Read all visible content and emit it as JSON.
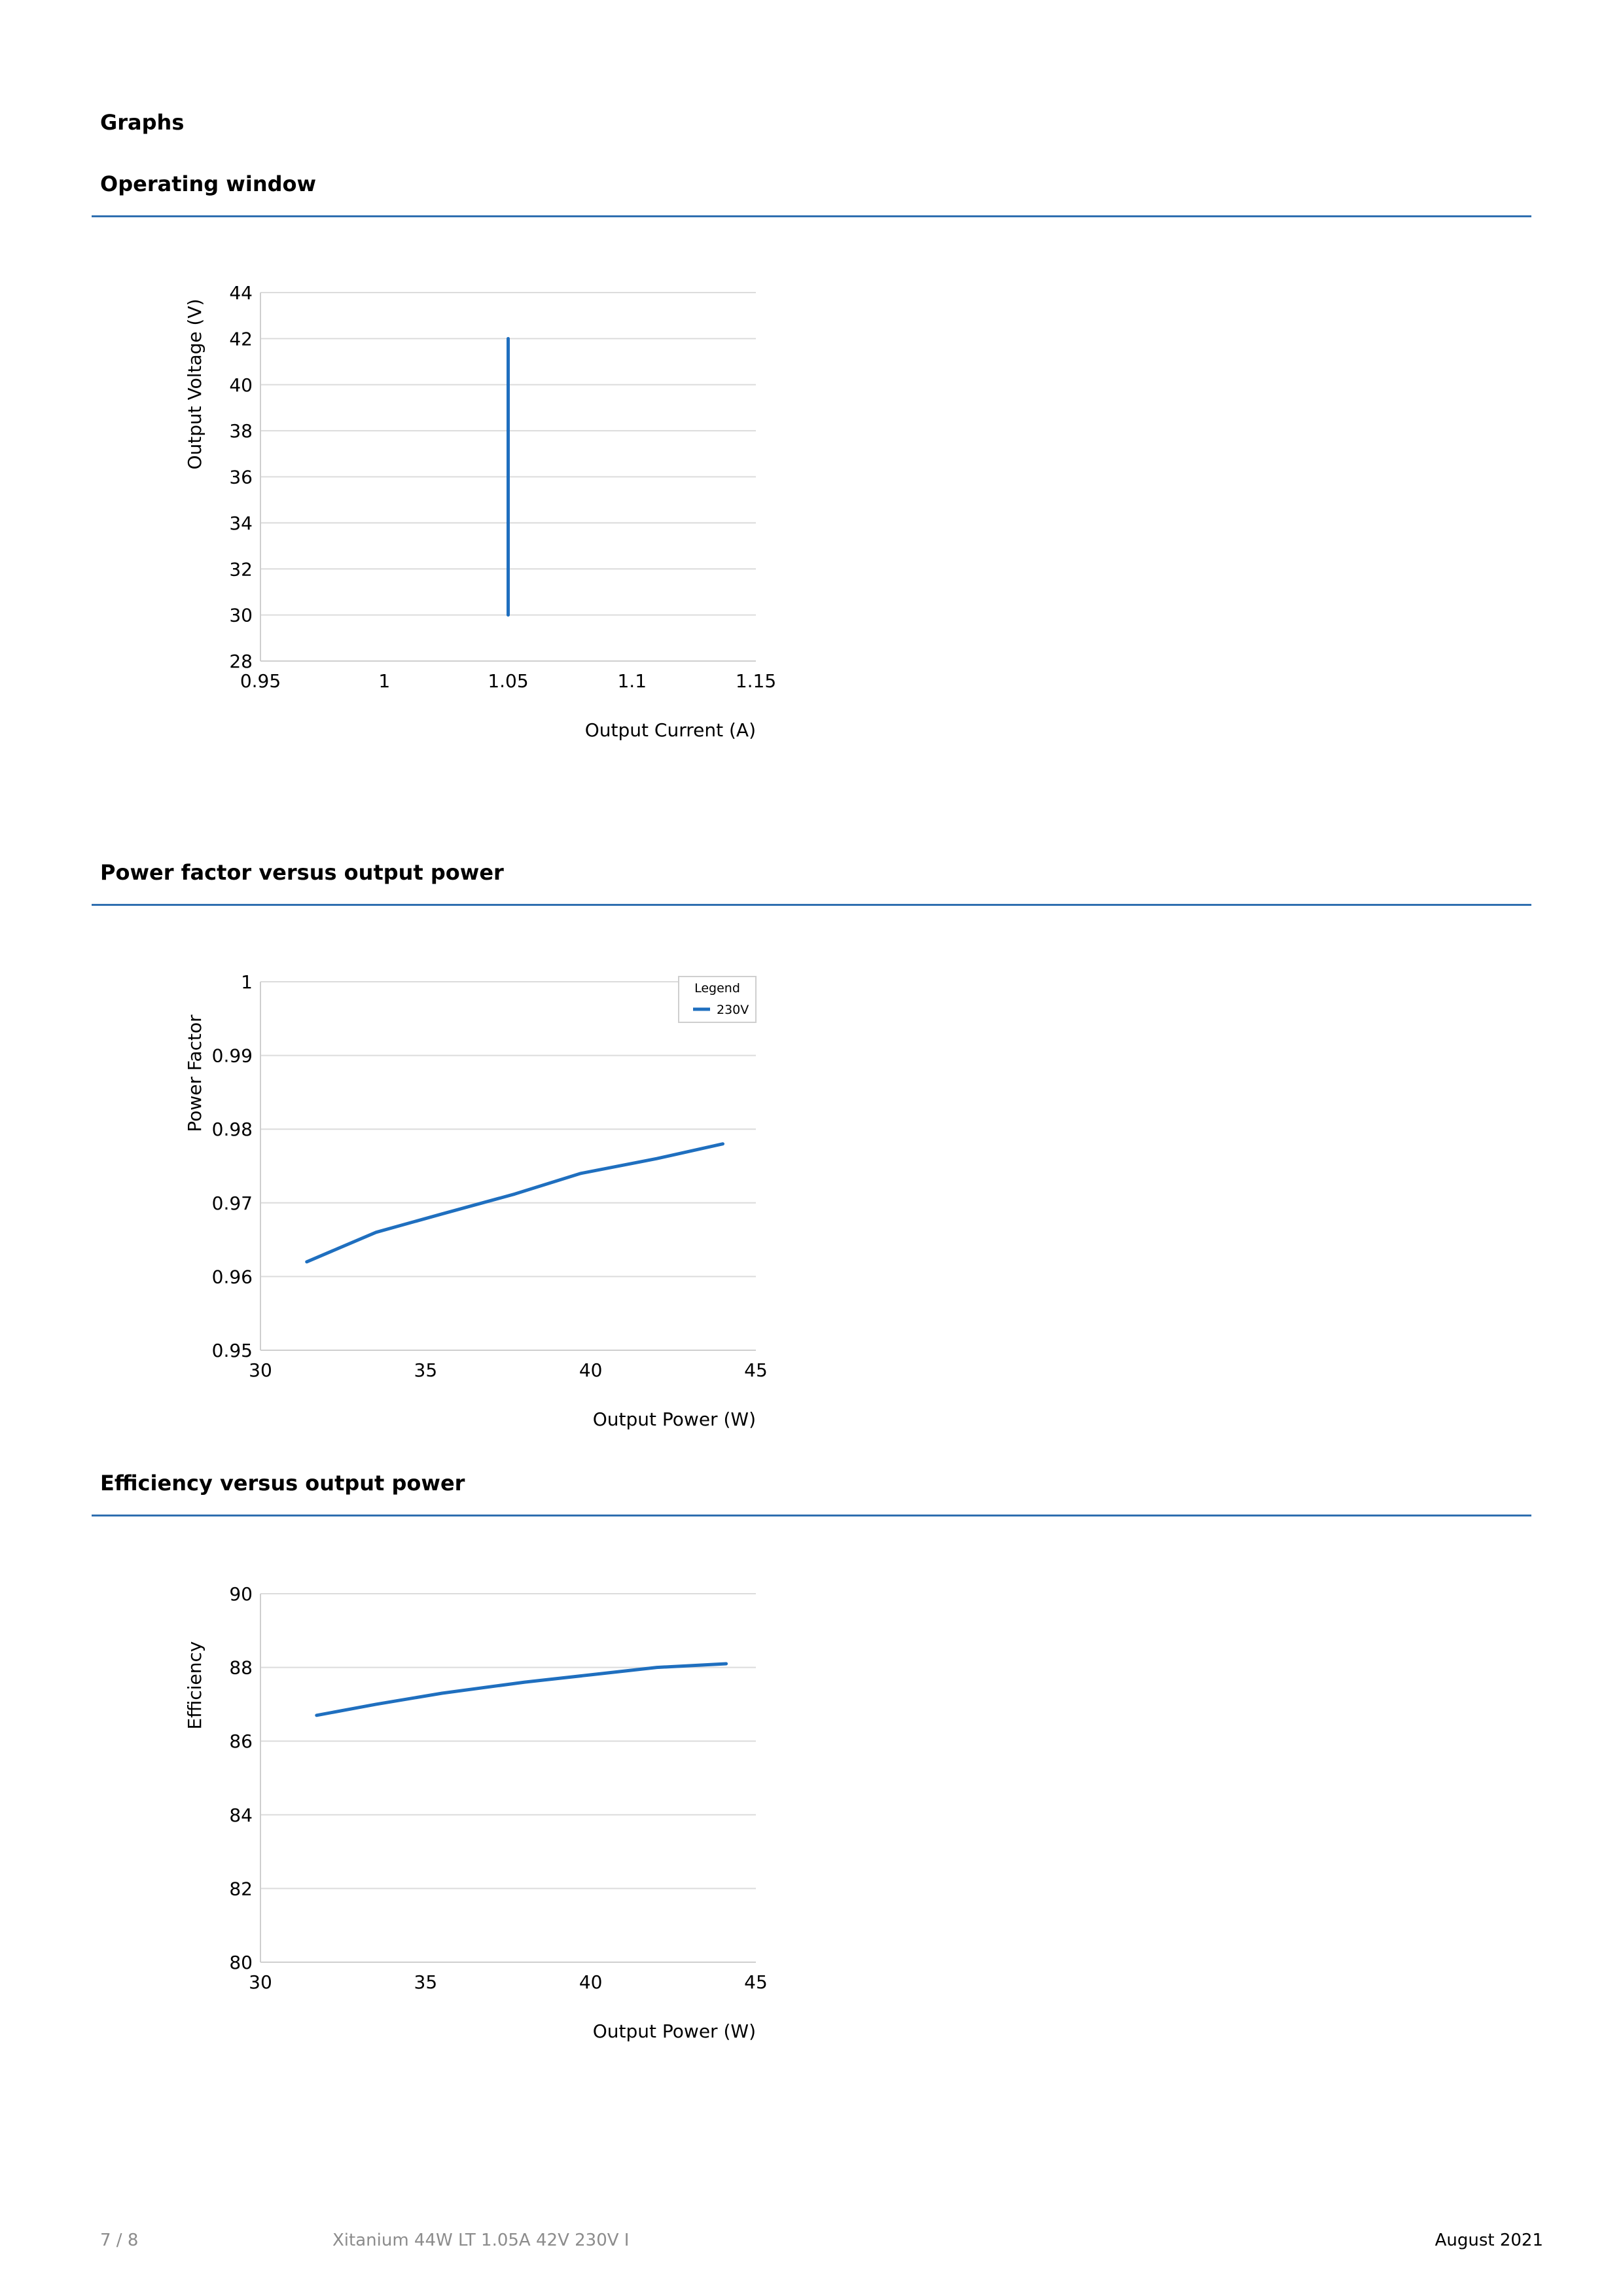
{
  "page": {
    "section_title": "Graphs",
    "footer": {
      "page": "7 / 8",
      "product": "Xitanium 44W LT 1.05A 42V 230V I",
      "date": "August 2021"
    }
  },
  "colors": {
    "accent": "#2f6fb0",
    "series": "#1f6fbf",
    "grid": "#dcdcdc",
    "footer_muted": "#8c8c8c"
  },
  "chart_data": [
    {
      "heading": "Operating window",
      "type": "line",
      "xlabel": "Output Current (A)",
      "ylabel": "Output Voltage (V)",
      "xlim": [
        0.95,
        1.15
      ],
      "ylim": [
        28,
        44
      ],
      "xticks": [
        "0.95",
        "1",
        "1.05",
        "1.1",
        "1.15"
      ],
      "yticks": [
        "28",
        "30",
        "32",
        "34",
        "36",
        "38",
        "40",
        "42",
        "44"
      ],
      "grid": true,
      "series": [
        {
          "x": [
            1.05,
            1.05
          ],
          "y": [
            30,
            42
          ]
        }
      ]
    },
    {
      "heading": "Power factor versus output power",
      "type": "line",
      "xlabel": "Output Power (W)",
      "ylabel": "Power Factor",
      "xlim": [
        30,
        45
      ],
      "ylim": [
        0.95,
        1
      ],
      "xticks": [
        "30",
        "35",
        "40",
        "45"
      ],
      "yticks": [
        "0.95",
        "0.96",
        "0.97",
        "0.98",
        "0.99",
        "1"
      ],
      "grid": true,
      "legend": {
        "title": "Legend",
        "position": "top-right"
      },
      "series": [
        {
          "name": "230V",
          "x": [
            31.4,
            33.5,
            35.5,
            37.7,
            39.7,
            42,
            44
          ],
          "y": [
            0.962,
            0.966,
            0.9685,
            0.9712,
            0.974,
            0.976,
            0.978
          ]
        }
      ]
    },
    {
      "heading": "Efficiency versus output power",
      "type": "line",
      "xlabel": "Output Power (W)",
      "ylabel": "Efficiency",
      "xlim": [
        30,
        45
      ],
      "ylim": [
        80,
        90
      ],
      "xticks": [
        "30",
        "35",
        "40",
        "45"
      ],
      "yticks": [
        "80",
        "82",
        "84",
        "86",
        "88",
        "90"
      ],
      "grid": true,
      "series": [
        {
          "x": [
            31.7,
            33.5,
            35.5,
            38,
            40,
            42,
            44.1
          ],
          "y": [
            86.7,
            87,
            87.3,
            87.6,
            87.8,
            88,
            88.1
          ]
        }
      ]
    }
  ]
}
